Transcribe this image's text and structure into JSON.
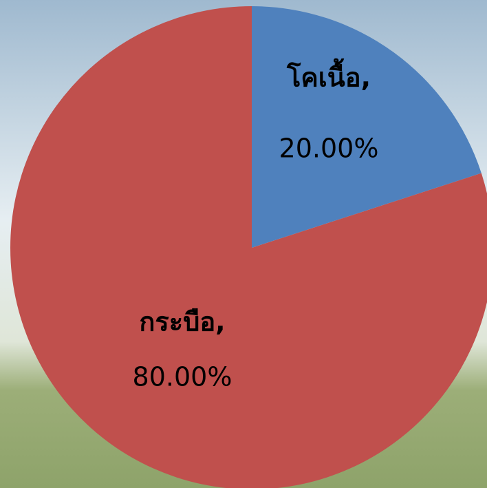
{
  "chart_data": {
    "type": "pie",
    "categories": [
      "โคเนื้อ,",
      "กระบือ,"
    ],
    "values": [
      20,
      80
    ],
    "value_labels": [
      "20.00%",
      "80.00%"
    ],
    "colors": [
      "#4f81bd",
      "#c0504d"
    ]
  }
}
